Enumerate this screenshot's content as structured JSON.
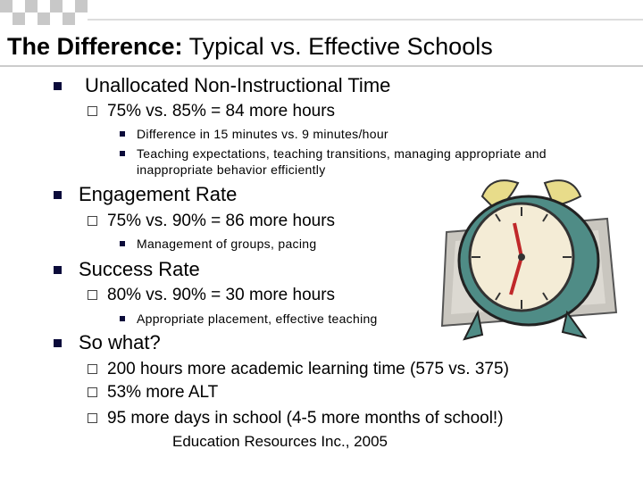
{
  "title": {
    "bold": "The Difference:",
    "rest": "Typical vs. Effective Schools"
  },
  "bullets": [
    {
      "text": "Unallocated Non-Instructional Time",
      "items": [
        {
          "text": "75% vs. 85% = 84 more hours",
          "items": [
            "Difference in 15 minutes vs. 9 minutes/hour",
            "Teaching expectations, teaching transitions, managing appropriate and inappropriate behavior efficiently"
          ]
        }
      ]
    },
    {
      "text": "Engagement Rate",
      "items": [
        {
          "text": "75% vs. 90% = 86 more hours",
          "items": [
            "Management of groups, pacing"
          ]
        }
      ]
    },
    {
      "text": "Success Rate",
      "items": [
        {
          "text": "80% vs. 90% = 30 more hours",
          "items": [
            "Appropriate placement, effective teaching"
          ]
        }
      ]
    },
    {
      "text": "So what?",
      "items": [
        {
          "text": "200 hours more academic learning time (575 vs. 375)"
        },
        {
          "text": "53% more ALT"
        },
        {
          "text": "95 more days in school (4-5 more months of school!)"
        }
      ]
    }
  ],
  "citation": "Education Resources Inc., 2005"
}
